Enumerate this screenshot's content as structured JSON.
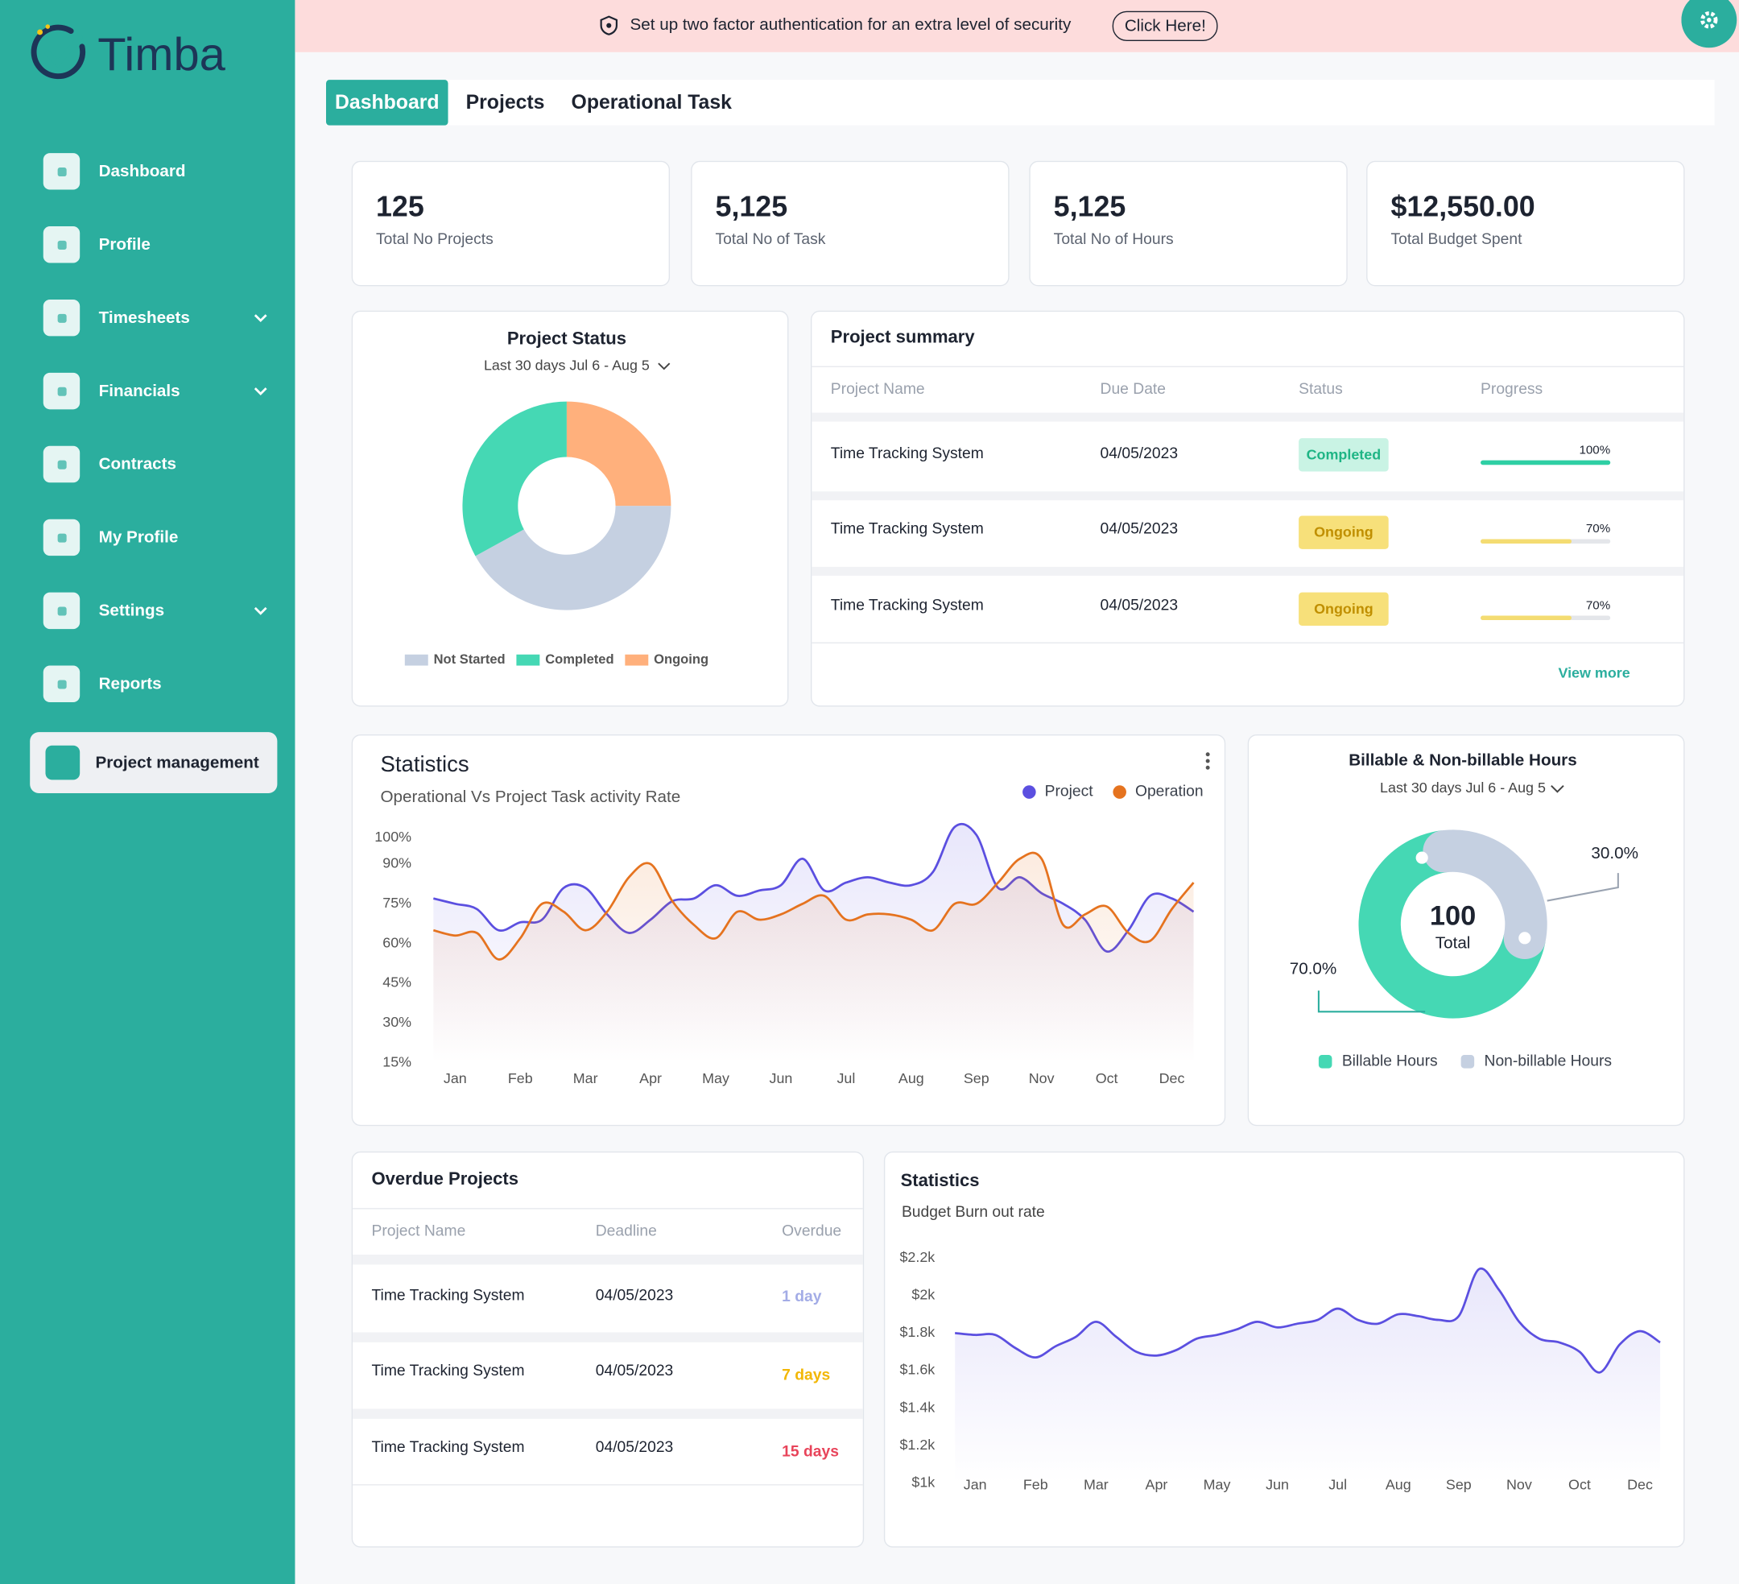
{
  "banner": {
    "text": "Set up two factor authentication for an extra level of security",
    "button": "Click Here!"
  },
  "brand": "Timba",
  "sidebar": [
    {
      "label": "Dashboard",
      "submenu": false
    },
    {
      "label": "Profile",
      "submenu": false
    },
    {
      "label": "Timesheets",
      "submenu": true
    },
    {
      "label": "Financials",
      "submenu": true
    },
    {
      "label": "Contracts",
      "submenu": false
    },
    {
      "label": "My Profile",
      "submenu": false
    },
    {
      "label": "Settings",
      "submenu": true
    },
    {
      "label": "Reports",
      "submenu": false
    },
    {
      "label": "Project management",
      "submenu": false,
      "active": true
    }
  ],
  "tabs": [
    {
      "label": "Dashboard",
      "active": true
    },
    {
      "label": "Projects",
      "active": false
    },
    {
      "label": "Operational Task",
      "active": false
    }
  ],
  "stats": [
    {
      "value": "125",
      "label": "Total No Projects",
      "color": "#2bae9e",
      "bg": "#d9f1ee"
    },
    {
      "value": "5,125",
      "label": "Total No of Task",
      "color": "#e8445a",
      "bg": "#fde1e6"
    },
    {
      "value": "5,125",
      "label": "Total No of Hours",
      "color": "#2f6fb0",
      "bg": "#dce8f4"
    },
    {
      "value": "$12,550.00",
      "label": "Total Budget Spent",
      "color": "#eec21c",
      "bg": "#fdf3d2"
    }
  ],
  "project_summary": {
    "title": "Project summary",
    "columns": [
      "Project Name",
      "Due Date",
      "Status",
      "Progress"
    ],
    "rows": [
      {
        "name": "Time Tracking System",
        "due_date": "04/05/2023",
        "status": "Completed",
        "badge_bg": "#c9f3e4",
        "badge_fg": "#1fb585",
        "progress": {
          "value": 100,
          "label": "100%"
        },
        "bar_color": "#2ecfa4"
      },
      {
        "name": "Time Tracking System",
        "due_date": "04/05/2023",
        "status": "Ongoing",
        "badge_bg": "#f7e07a",
        "badge_fg": "#c08f00",
        "progress": {
          "value": 70,
          "label": "70%"
        },
        "bar_color": "#f4dc72"
      },
      {
        "name": "Time Tracking System",
        "due_date": "04/05/2023",
        "status": "Ongoing",
        "badge_bg": "#f7e07a",
        "badge_fg": "#c08f00",
        "progress": {
          "value": 70,
          "label": "70%"
        },
        "bar_color": "#f4dc72"
      }
    ],
    "link": "View more"
  },
  "overdue": {
    "title": "Overdue Projects",
    "columns": [
      "Project Name",
      "Deadline",
      "Overdue"
    ],
    "rows": [
      {
        "name": "Time Tracking System",
        "deadline": "04/05/2023",
        "overdue": "1 day",
        "color": "#a3ace6"
      },
      {
        "name": "Time Tracking System",
        "deadline": "04/05/2023",
        "overdue": "7 days",
        "color": "#f2b705"
      },
      {
        "name": "Time Tracking System",
        "deadline": "04/05/2023",
        "overdue": "15 days",
        "color": "#e8445a"
      }
    ]
  },
  "chart_data": [
    {
      "type": "pie",
      "title": "Project Status",
      "subtitle": "Last 30 days Jul 6 - Aug 5",
      "categories": [
        "Not Started",
        "Completed",
        "Ongoing"
      ],
      "values": [
        42,
        33,
        25
      ],
      "colors": [
        "#c5d0e1",
        "#45d8b4",
        "#ffb07c"
      ]
    },
    {
      "type": "line",
      "title": "Statistics",
      "subtitle": "Operational Vs Project Task activity Rate",
      "categories": [
        null,
        "Jan",
        null,
        null,
        "Feb",
        null,
        null,
        "Mar",
        null,
        null,
        "Apr",
        null,
        null,
        "May",
        null,
        null,
        "Jun",
        null,
        null,
        "Jul",
        null,
        null,
        "Aug",
        null,
        null,
        "Sep",
        null,
        null,
        "Nov",
        null,
        null,
        "Oct",
        null,
        null,
        "Dec",
        null
      ],
      "ylim": [
        15,
        100
      ],
      "yticks": [
        {
          "value": 15,
          "label": "15%"
        },
        {
          "value": 30,
          "label": "30%"
        },
        {
          "value": 45,
          "label": "45%"
        },
        {
          "value": 60,
          "label": "60%"
        },
        {
          "value": 75,
          "label": "75%"
        },
        {
          "value": 90,
          "label": "90%"
        },
        {
          "value": 100,
          "label": "100%"
        }
      ],
      "grid": false,
      "series": [
        {
          "name": "Project",
          "color": "#5b4fe0",
          "values": [
            77,
            75,
            73,
            65,
            68,
            69,
            81,
            81,
            71,
            64,
            69,
            76,
            77,
            82,
            78,
            80,
            82,
            92,
            80,
            83,
            85,
            83,
            82,
            87,
            104,
            101,
            81,
            85,
            79,
            75,
            69,
            57,
            65,
            78,
            77,
            72
          ]
        },
        {
          "name": "Operation",
          "color": "#e5731f",
          "values": [
            65,
            63,
            64,
            54,
            62,
            75,
            72,
            65,
            72,
            85,
            90,
            76,
            67,
            62,
            72,
            69,
            71,
            75,
            78,
            69,
            71,
            71,
            69,
            65,
            75,
            75,
            83,
            92,
            92,
            67,
            71,
            74,
            64,
            61,
            73,
            83
          ]
        }
      ]
    },
    {
      "type": "pie",
      "title": "Billable & Non-billable Hours",
      "subtitle": "Last 30 days Jul 6 - Aug 5",
      "categories": [
        "Billable Hours",
        "Non-billable Hours"
      ],
      "values": [
        70,
        30
      ],
      "value_labels": [
        "70.0%",
        "30.0%"
      ],
      "colors": [
        "#45d8b4",
        "#c5d0e1"
      ],
      "center_value": 100,
      "center_label": "Total"
    },
    {
      "type": "line",
      "title": "Statistics",
      "subtitle": "Budget Burn out rate",
      "categories": [
        null,
        "Jan",
        null,
        null,
        "Feb",
        null,
        null,
        "Mar",
        null,
        null,
        "Apr",
        null,
        null,
        "May",
        null,
        null,
        "Jun",
        null,
        null,
        "Jul",
        null,
        null,
        "Aug",
        null,
        null,
        "Sep",
        null,
        null,
        "Nov",
        null,
        null,
        "Oct",
        null,
        null,
        "Dec",
        null
      ],
      "ylim": [
        1000,
        2200
      ],
      "yticks": [
        {
          "value": 1000,
          "label": "$1k"
        },
        {
          "value": 1200,
          "label": "$1.2k"
        },
        {
          "value": 1400,
          "label": "$1.4k"
        },
        {
          "value": 1600,
          "label": "$1.6k"
        },
        {
          "value": 1800,
          "label": "$1.8k"
        },
        {
          "value": 2000,
          "label": "$2k"
        },
        {
          "value": 2200,
          "label": "$2.2k"
        }
      ],
      "grid": false,
      "color": "#5b4fe0",
      "values": [
        1800,
        1790,
        1790,
        1720,
        1670,
        1730,
        1780,
        1860,
        1780,
        1700,
        1680,
        1710,
        1770,
        1790,
        1820,
        1860,
        1830,
        1850,
        1870,
        1930,
        1870,
        1850,
        1900,
        1890,
        1870,
        1890,
        2140,
        2030,
        1860,
        1770,
        1750,
        1700,
        1590,
        1740,
        1810,
        1750
      ]
    }
  ]
}
